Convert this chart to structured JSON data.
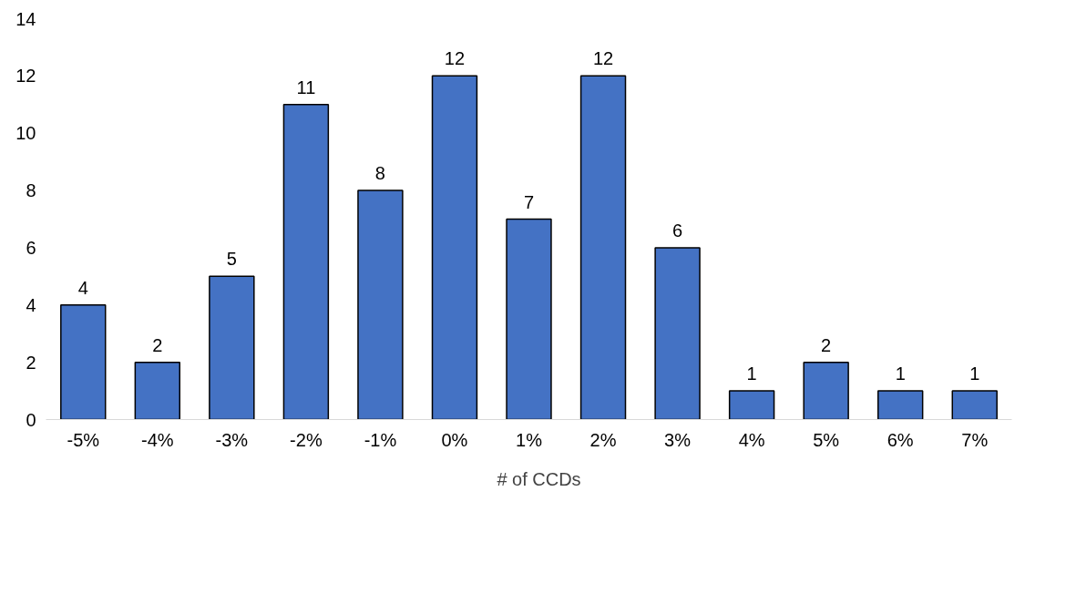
{
  "chart_data": {
    "type": "bar",
    "categories": [
      "-5%",
      "-4%",
      "-3%",
      "-2%",
      "-1%",
      "0%",
      "1%",
      "2%",
      "3%",
      "4%",
      "5%",
      "6%",
      "7%"
    ],
    "series": [
      {
        "name": "# of CCDs",
        "color": "#4472c4",
        "values": [
          4,
          2,
          5,
          11,
          8,
          12,
          7,
          12,
          6,
          1,
          2,
          1,
          1
        ]
      }
    ],
    "ylim": [
      0,
      14
    ],
    "yticks": [
      0,
      2,
      4,
      6,
      8,
      10,
      12,
      14
    ],
    "data_labels": true,
    "legend": "bottom",
    "grid": false
  }
}
